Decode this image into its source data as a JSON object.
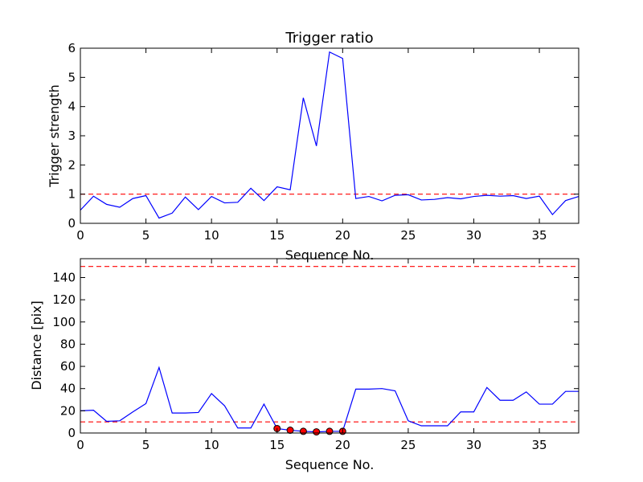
{
  "chart_data": [
    {
      "type": "line",
      "title": "Trigger ratio",
      "xlabel": "Sequence No.",
      "ylabel": "Trigger strength",
      "xlim": [
        0,
        38
      ],
      "ylim": [
        0,
        6
      ],
      "xticks": [
        "0",
        "5",
        "10",
        "15",
        "20",
        "25",
        "30",
        "35"
      ],
      "yticks": [
        "0",
        "1",
        "2",
        "3",
        "4",
        "5",
        "6"
      ],
      "line_color": "#0000ff",
      "threshold": {
        "y": 1,
        "color": "#ff0000"
      },
      "series": [
        {
          "x": [
            0,
            1,
            2,
            3,
            4,
            5,
            6,
            7,
            8,
            9,
            10,
            11,
            12,
            13,
            14,
            15,
            16,
            17,
            18,
            19,
            20,
            21,
            22,
            23,
            24,
            25,
            26,
            27,
            28,
            29,
            30,
            31,
            32,
            33,
            34,
            35,
            36,
            37,
            38
          ],
          "values": [
            0.45,
            0.93,
            0.65,
            0.55,
            0.85,
            0.95,
            0.18,
            0.35,
            0.9,
            0.47,
            0.92,
            0.7,
            0.72,
            1.2,
            0.78,
            1.25,
            1.15,
            4.3,
            2.65,
            5.87,
            5.65,
            0.85,
            0.92,
            0.77,
            0.96,
            0.98,
            0.8,
            0.82,
            0.88,
            0.84,
            0.92,
            0.96,
            0.93,
            0.95,
            0.85,
            0.93,
            0.3,
            0.78,
            0.92
          ]
        }
      ]
    },
    {
      "type": "line",
      "xlabel": "Sequence No.",
      "ylabel": "Distance [pix]",
      "xlim": [
        0,
        38
      ],
      "ylim": [
        0,
        157
      ],
      "xticks": [
        "0",
        "5",
        "10",
        "15",
        "20",
        "25",
        "30",
        "35"
      ],
      "yticks": [
        "0",
        "20",
        "40",
        "60",
        "80",
        "100",
        "120",
        "140"
      ],
      "line_color": "#0000ff",
      "thresholds": [
        {
          "y": 150,
          "color": "#ff0000"
        },
        {
          "y": 10,
          "color": "#ff0000"
        }
      ],
      "series": [
        {
          "x": [
            0,
            1,
            2,
            3,
            4,
            5,
            6,
            7,
            8,
            9,
            10,
            11,
            12,
            13,
            14,
            15,
            16,
            17,
            18,
            19,
            20,
            21,
            22,
            23,
            24,
            25,
            26,
            27,
            28,
            29,
            30,
            31,
            32,
            33,
            34,
            35,
            36,
            37,
            38
          ],
          "values": [
            20,
            20.5,
            10.5,
            11,
            19,
            26.5,
            59,
            18,
            18,
            18.5,
            35.5,
            24.5,
            4.5,
            4.5,
            26,
            4,
            2.5,
            1.5,
            1,
            1.5,
            1.5,
            39.5,
            39.5,
            40,
            38,
            11,
            6.5,
            6.5,
            6.5,
            19,
            19,
            41,
            29.5,
            29.5,
            37,
            26,
            26,
            37.5,
            37.5
          ]
        }
      ],
      "markers": {
        "color": "#ff0000",
        "x": [
          15,
          16,
          17,
          18,
          19,
          20
        ],
        "values": [
          4,
          2.5,
          1.5,
          1,
          1.5,
          1.5
        ]
      }
    }
  ]
}
